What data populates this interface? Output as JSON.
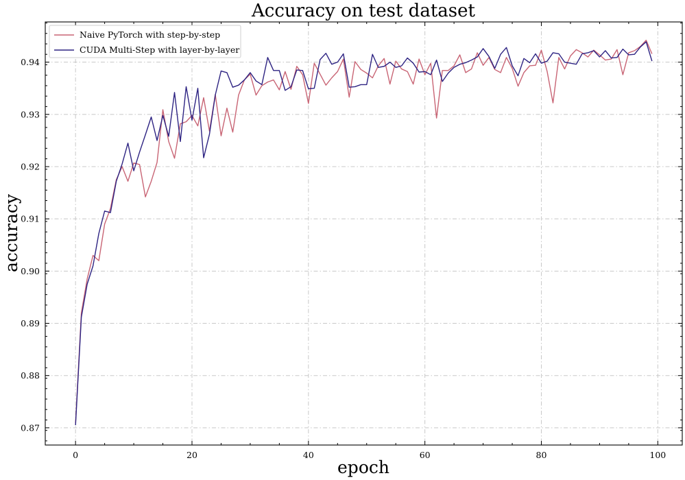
{
  "chart_data": {
    "type": "line",
    "title": "Accuracy on test dataset",
    "xlabel": "epoch",
    "ylabel": "accuracy",
    "xlim": [
      -5.2,
      104.2
    ],
    "ylim": [
      0.8667,
      0.9477
    ],
    "xticks": [
      0,
      20,
      40,
      60,
      80,
      100
    ],
    "yticks": [
      0.87,
      0.88,
      0.89,
      0.9,
      0.91,
      0.92,
      0.93,
      0.94
    ],
    "ytick_labels": [
      "0.87",
      "0.88",
      "0.89",
      "0.90",
      "0.91",
      "0.92",
      "0.93",
      "0.94"
    ],
    "grid": true,
    "legend": "top-left",
    "x": [
      0,
      1,
      2,
      3,
      4,
      5,
      6,
      7,
      8,
      9,
      10,
      11,
      12,
      13,
      14,
      15,
      16,
      17,
      18,
      19,
      20,
      21,
      22,
      23,
      24,
      25,
      26,
      27,
      28,
      29,
      30,
      31,
      32,
      33,
      34,
      35,
      36,
      37,
      38,
      39,
      40,
      41,
      42,
      43,
      44,
      45,
      46,
      47,
      48,
      49,
      50,
      51,
      52,
      53,
      54,
      55,
      56,
      57,
      58,
      59,
      60,
      61,
      62,
      63,
      64,
      65,
      66,
      67,
      68,
      69,
      70,
      71,
      72,
      73,
      74,
      75,
      76,
      77,
      78,
      79,
      80,
      81,
      82,
      83,
      84,
      85,
      86,
      87,
      88,
      89,
      90,
      91,
      92,
      93,
      94,
      95,
      96,
      97,
      98,
      99
    ],
    "series": [
      {
        "name": "Naive PyTorch with step-by-step",
        "color": "#c86474",
        "values": [
          0.8709,
          0.892,
          0.8985,
          0.903,
          0.902,
          0.909,
          0.912,
          0.9175,
          0.92,
          0.9172,
          0.9207,
          0.9204,
          0.9142,
          0.9172,
          0.9208,
          0.9309,
          0.9248,
          0.9216,
          0.9282,
          0.9286,
          0.9298,
          0.9278,
          0.9332,
          0.9268,
          0.9338,
          0.9259,
          0.9312,
          0.9266,
          0.9337,
          0.9366,
          0.9377,
          0.9337,
          0.9355,
          0.9362,
          0.9366,
          0.9347,
          0.9382,
          0.9348,
          0.9392,
          0.9376,
          0.9321,
          0.9398,
          0.9377,
          0.9356,
          0.937,
          0.9382,
          0.9406,
          0.9333,
          0.9401,
          0.9386,
          0.9379,
          0.937,
          0.9393,
          0.9407,
          0.9358,
          0.9402,
          0.9387,
          0.9382,
          0.9358,
          0.9406,
          0.9376,
          0.9398,
          0.9293,
          0.9384,
          0.9384,
          0.9393,
          0.9414,
          0.938,
          0.9387,
          0.9418,
          0.9394,
          0.9409,
          0.9386,
          0.938,
          0.9409,
          0.9388,
          0.9354,
          0.938,
          0.9393,
          0.9394,
          0.9423,
          0.9382,
          0.9322,
          0.9409,
          0.9387,
          0.9412,
          0.9424,
          0.9418,
          0.941,
          0.9423,
          0.9414,
          0.9404,
          0.9406,
          0.9424,
          0.9376,
          0.9418,
          0.9422,
          0.943,
          0.9442,
          0.9416
        ]
      },
      {
        "name": "CUDA Multi-Step with layer-by-layer",
        "color": "#2d2382",
        "values": [
          0.8705,
          0.8912,
          0.8975,
          0.901,
          0.9072,
          0.9115,
          0.9112,
          0.9172,
          0.9205,
          0.9245,
          0.9192,
          0.9228,
          0.9261,
          0.9295,
          0.925,
          0.9298,
          0.9258,
          0.9342,
          0.9248,
          0.9353,
          0.9289,
          0.935,
          0.9217,
          0.9262,
          0.9337,
          0.9383,
          0.938,
          0.9352,
          0.9356,
          0.9366,
          0.938,
          0.9364,
          0.9357,
          0.9409,
          0.9384,
          0.9384,
          0.9346,
          0.9353,
          0.9385,
          0.9384,
          0.9349,
          0.935,
          0.9405,
          0.9417,
          0.9396,
          0.94,
          0.9416,
          0.9352,
          0.9353,
          0.9357,
          0.9357,
          0.9415,
          0.939,
          0.9392,
          0.94,
          0.939,
          0.9393,
          0.9408,
          0.9398,
          0.9381,
          0.9382,
          0.9376,
          0.9404,
          0.9363,
          0.9379,
          0.939,
          0.9396,
          0.9399,
          0.9404,
          0.941,
          0.9426,
          0.9411,
          0.9388,
          0.9415,
          0.9428,
          0.9393,
          0.9374,
          0.9407,
          0.9399,
          0.9416,
          0.9398,
          0.9402,
          0.9418,
          0.9416,
          0.94,
          0.9398,
          0.9396,
          0.9416,
          0.9418,
          0.9422,
          0.941,
          0.9422,
          0.9408,
          0.9409,
          0.9425,
          0.9414,
          0.9415,
          0.9429,
          0.9439,
          0.9402
        ]
      }
    ]
  }
}
